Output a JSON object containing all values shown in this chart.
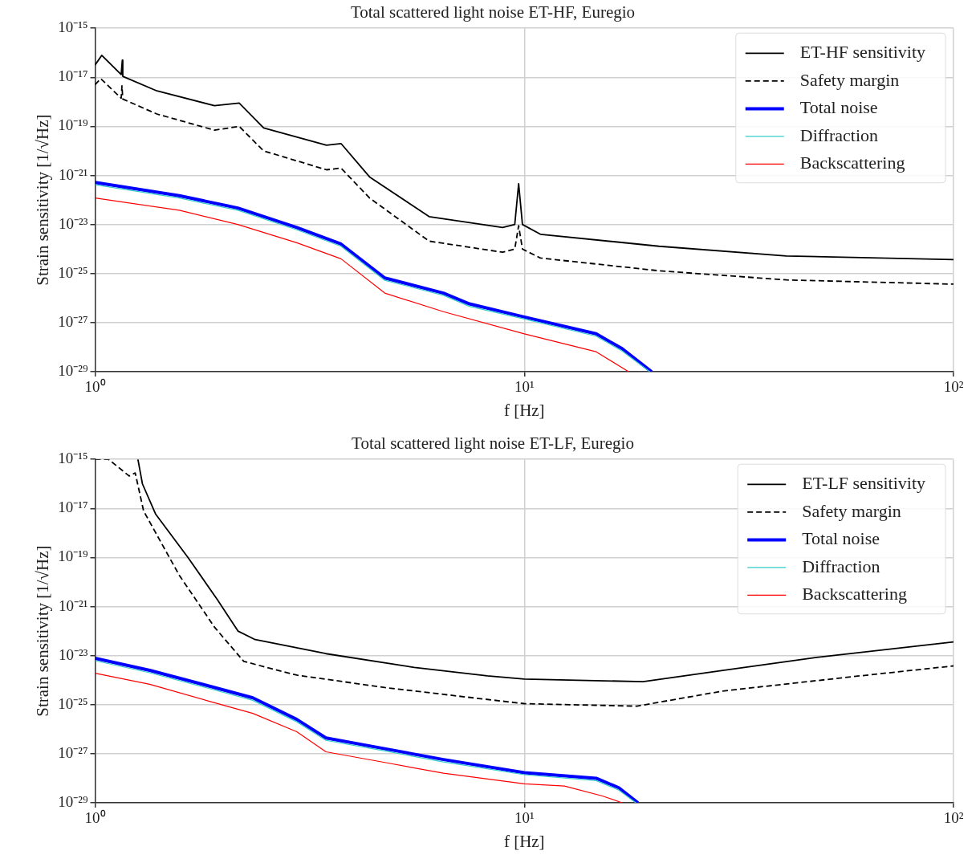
{
  "chart_data": [
    {
      "type": "line",
      "title": "Total scattered light noise ET-HF, Euregio",
      "xlabel": "f [Hz]",
      "ylabel": "Strain sensitivity [1/√Hz]",
      "log": "xy",
      "grid": true,
      "legend": "top right",
      "xlim": [
        1,
        100
      ],
      "xticks": [
        {
          "value": 1,
          "label": "10⁰"
        },
        {
          "value": 10,
          "label": "10¹"
        },
        {
          "value": 100,
          "label": "10²"
        }
      ],
      "ylim": [
        1e-29,
        1e-15
      ],
      "yticks": [
        {
          "value": 1e-29,
          "label": "10⁻²⁹"
        },
        {
          "value": 1e-27,
          "label": "10⁻²⁷"
        },
        {
          "value": 1e-25,
          "label": "10⁻²⁵"
        },
        {
          "value": 1e-23,
          "label": "10⁻²³"
        },
        {
          "value": 1e-21,
          "label": "10⁻²¹"
        },
        {
          "value": 1e-19,
          "label": "10⁻¹⁹"
        },
        {
          "value": 1e-17,
          "label": "10⁻¹⁷"
        },
        {
          "value": 1e-15,
          "label": "10⁻¹⁵"
        }
      ],
      "series": [
        {
          "name": "ET-HF sensitivity",
          "color": "#000000",
          "line_style": "solid",
          "x": [
            1,
            1.036,
            1.15,
            1.157,
            1.16,
            1.393,
            1.897,
            2.166,
            2.47,
            3.46,
            3.74,
            4.36,
            6.0,
            8.9,
            9.5,
            9.7,
            9.9,
            10.9,
            20.6,
            40.8,
            100
          ],
          "values": [
            3.2e-17,
            7.9e-17,
            1.3e-17,
            5e-17,
            1.1e-17,
            2.8e-18,
            7e-19,
            8.9e-19,
            8.7e-20,
            1.7e-20,
            2e-20,
            8.7e-22,
            2.1e-23,
            7.6e-24,
            1e-23,
            4.6e-22,
            1e-23,
            4e-24,
            1.3e-24,
            5.2e-25,
            3.7e-25
          ]
        },
        {
          "name": "Safety margin",
          "color": "#000000",
          "line_style": "dashed",
          "x": [
            1,
            1.03,
            1.15,
            1.155,
            1.16,
            1.393,
            1.897,
            2.166,
            2.47,
            3.46,
            3.74,
            4.36,
            6.0,
            8.9,
            9.5,
            9.7,
            9.9,
            10.9,
            20.6,
            40.8,
            100
          ],
          "values": [
            5e-18,
            8.9e-18,
            1.4e-18,
            4.5e-18,
            1.3e-18,
            3.2e-19,
            7e-20,
            1e-19,
            1e-20,
            1.7e-21,
            2e-21,
            1.2e-22,
            2.1e-24,
            7.4e-25,
            1e-24,
            8.9e-24,
            1e-24,
            4.3e-25,
            1.3e-25,
            5.5e-26,
            3.7e-26
          ]
        },
        {
          "name": "Total noise",
          "color": "#0000ff",
          "line_style": "solid",
          "x": [
            1,
            1.57,
            2.15,
            2.95,
            3.74,
            4.73,
            6.48,
            7.45,
            10,
            14.7,
            16.9,
            19.8
          ],
          "values": [
            5.2e-22,
            1.5e-22,
            4.7e-23,
            7.6e-24,
            1.6e-24,
            6.6e-26,
            1.6e-26,
            5.8e-27,
            1.7e-27,
            3.5e-28,
            8.7e-29,
            1e-29
          ]
        },
        {
          "name": "Diffraction",
          "color": "#33cccc",
          "line_style": "solid",
          "x": [
            1,
            1.57,
            2.15,
            2.95,
            3.74,
            4.73,
            6.48,
            7.45,
            10,
            14.7,
            16.9,
            19.6
          ],
          "values": [
            4.2e-22,
            1.2e-22,
            3.8e-23,
            6.1e-24,
            1.3e-24,
            5.3e-26,
            1.3e-26,
            4.6e-27,
            1.4e-27,
            2.8e-28,
            7e-29,
            1e-29
          ]
        },
        {
          "name": "Backscattering",
          "color": "#ff0000",
          "line_style": "solid",
          "x": [
            1,
            1.57,
            2.15,
            2.95,
            3.74,
            4.73,
            6.48,
            10,
            14.7,
            17.5
          ],
          "values": [
            1.2e-22,
            3.8e-23,
            1e-23,
            1.8e-24,
            4e-25,
            1.6e-26,
            2.8e-27,
            3.5e-28,
            6.5e-29,
            1e-29
          ]
        }
      ]
    },
    {
      "type": "line",
      "title": "Total scattered light noise ET-LF, Euregio",
      "xlabel": "f [Hz]",
      "ylabel": "Strain sensitivity [1/√Hz]",
      "log": "xy",
      "grid": true,
      "legend": "top right",
      "xlim": [
        1,
        100
      ],
      "xticks": [
        {
          "value": 1,
          "label": "10⁰"
        },
        {
          "value": 10,
          "label": "10¹"
        },
        {
          "value": 100,
          "label": "10²"
        }
      ],
      "ylim": [
        1e-29,
        1e-15
      ],
      "yticks": [
        {
          "value": 1e-29,
          "label": "10⁻²⁹"
        },
        {
          "value": 1e-27,
          "label": "10⁻²⁷"
        },
        {
          "value": 1e-25,
          "label": "10⁻²⁵"
        },
        {
          "value": 1e-23,
          "label": "10⁻²³"
        },
        {
          "value": 1e-21,
          "label": "10⁻²¹"
        },
        {
          "value": 1e-19,
          "label": "10⁻¹⁹"
        },
        {
          "value": 1e-17,
          "label": "10⁻¹⁷"
        },
        {
          "value": 1e-15,
          "label": "10⁻¹⁵"
        }
      ],
      "series": [
        {
          "name": "ET-LF sensitivity",
          "color": "#000000",
          "line_style": "solid",
          "x": [
            1.258,
            1.289,
            1.384,
            1.646,
            1.927,
            2.152,
            2.36,
            3.45,
            5.54,
            8.2,
            10,
            18.9,
            29,
            48,
            100
          ],
          "values": [
            1e-15,
            1e-16,
            5.8e-18,
            1e-19,
            1.9e-21,
            1e-22,
            4.5e-23,
            1.2e-23,
            3.3e-24,
            1.5e-24,
            1.1e-24,
            8.7e-25,
            2.5e-24,
            8.5e-24,
            3.6e-23
          ]
        },
        {
          "name": "Safety margin",
          "color": "#000000",
          "line_style": "dashed",
          "x": [
            1,
            1.075,
            1.2,
            1.24,
            1.297,
            1.57,
            1.9,
            2.22,
            2.95,
            4.73,
            7.6,
            10,
            18.3,
            29,
            58.5,
            100
          ],
          "values": [
            1e-15,
            1e-15,
            2.1e-16,
            2.8e-16,
            7.9e-18,
            1.9e-20,
            1.4e-22,
            5.8e-24,
            1.6e-24,
            5e-25,
            1.9e-25,
            1.1e-25,
            8.7e-26,
            3.6e-25,
            1.4e-24,
            3.8e-24
          ]
        },
        {
          "name": "Total noise",
          "color": "#0000ff",
          "line_style": "solid",
          "x": [
            1,
            1.34,
            1.84,
            2.33,
            2.95,
            3.45,
            4.73,
            6.48,
            10,
            14.7,
            16.6,
            18.4
          ],
          "values": [
            7.8e-24,
            2.5e-24,
            5.8e-25,
            1.9e-25,
            2.5e-26,
            4.4e-27,
            1.6e-27,
            5.8e-28,
            1.7e-28,
            1e-28,
            4.1e-29,
            1e-29
          ]
        },
        {
          "name": "Diffraction",
          "color": "#33cccc",
          "line_style": "solid",
          "x": [
            1,
            1.34,
            1.84,
            2.33,
            2.95,
            3.45,
            4.73,
            6.48,
            10,
            14.7,
            16.6,
            18.2
          ],
          "values": [
            6.2e-24,
            2e-24,
            4.6e-25,
            1.5e-25,
            2e-26,
            3.5e-27,
            1.3e-27,
            4.6e-28,
            1.4e-28,
            8e-29,
            3.3e-29,
            1e-29
          ]
        },
        {
          "name": "Backscattering",
          "color": "#ff0000",
          "line_style": "solid",
          "x": [
            1,
            1.34,
            1.84,
            2.33,
            2.95,
            3.45,
            4.73,
            6.48,
            10,
            12.4,
            15.2,
            16.9
          ],
          "values": [
            1.9e-24,
            6.8e-25,
            1.4e-25,
            4.4e-26,
            7.9e-27,
            1.2e-27,
            4.4e-28,
            1.6e-28,
            5.9e-29,
            4.8e-29,
            1.9e-29,
            1e-29
          ]
        }
      ]
    }
  ]
}
